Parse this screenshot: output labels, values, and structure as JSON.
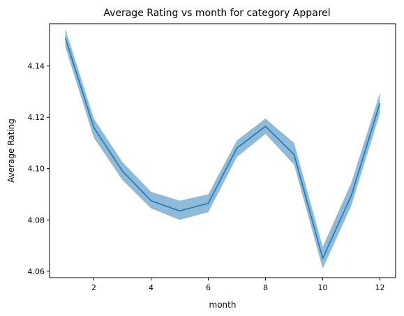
{
  "chart_data": {
    "type": "line",
    "title": "Average Rating vs month for category Apparel",
    "xlabel": "month",
    "ylabel": "Average Rating",
    "xlim": [
      0.45,
      12.55
    ],
    "ylim": [
      4.0575,
      4.1565
    ],
    "x_ticks": [
      2,
      4,
      6,
      8,
      10,
      12
    ],
    "x_tick_labels": [
      "2",
      "4",
      "6",
      "8",
      "10",
      "12"
    ],
    "y_ticks": [
      4.06,
      4.08,
      4.1,
      4.12,
      4.14
    ],
    "y_tick_labels": [
      "4.06",
      "4.08",
      "4.10",
      "4.12",
      "4.14"
    ],
    "grid": false,
    "series": [
      {
        "x": [
          1,
          2,
          3,
          4,
          5,
          6,
          7,
          8,
          9,
          10,
          11,
          12
        ],
        "values": [
          4.151,
          4.116,
          4.099,
          4.0875,
          4.0835,
          4.0865,
          4.108,
          4.1165,
          4.1055,
          4.065,
          4.0895,
          4.1255
        ],
        "ci_lower": [
          4.1475,
          4.112,
          4.0955,
          4.0845,
          4.08,
          4.083,
          4.1045,
          4.1135,
          4.1015,
          4.061,
          4.0855,
          4.1215
        ],
        "ci_upper": [
          4.1545,
          4.1195,
          4.1025,
          4.091,
          4.0875,
          4.09,
          4.111,
          4.1195,
          4.11,
          4.0695,
          4.0945,
          4.1295
        ],
        "color": "#1f77b4",
        "band_color": "#1f77b4"
      }
    ]
  }
}
